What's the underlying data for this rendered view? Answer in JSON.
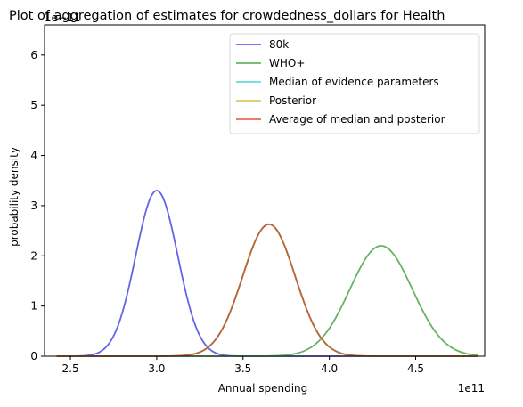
{
  "chart_data": {
    "type": "line",
    "title": "Plot of aggregation of estimates for crowdedness_dollars for Health",
    "xlabel": "Annual spending",
    "ylabel": "probability density",
    "x_offset_text": "1e11",
    "y_offset_text": "1e−11",
    "xlim": [
      2.35,
      4.9
    ],
    "ylim": [
      0,
      6.6
    ],
    "x_ticks": [
      2.5,
      3.0,
      3.5,
      4.0,
      4.5
    ],
    "x_tick_labels": [
      "2.5",
      "3.0",
      "3.5",
      "4.0",
      "4.5"
    ],
    "y_ticks": [
      0,
      1,
      2,
      3,
      4,
      5,
      6
    ],
    "y_tick_labels": [
      "0",
      "1",
      "2",
      "3",
      "4",
      "5",
      "6"
    ],
    "x_range": [
      2.42,
      4.86
    ],
    "legend_position": "upper right",
    "grid": false,
    "series": [
      {
        "name": "80k",
        "color": "#6464e6",
        "distribution": "normal",
        "mean": 3.0,
        "sd": 0.122,
        "peak": 3.3
      },
      {
        "name": "WHO+",
        "color": "#64b464",
        "distribution": "normal",
        "mean": 4.3,
        "sd": 0.181,
        "peak": 2.2
      },
      {
        "name": "Median of evidence parameters",
        "color": "#64dcdc",
        "distribution": "normal",
        "mean": 3.65,
        "sd": 0.152,
        "peak": 2.63
      },
      {
        "name": "Posterior",
        "color": "#dcc864",
        "distribution": "normal",
        "mean": 3.65,
        "sd": 0.152,
        "peak": 2.63
      },
      {
        "name": "Average of median and posterior",
        "color": "#f0645a",
        "distribution": "normal",
        "mean": 3.65,
        "sd": 0.152,
        "peak": 2.63
      }
    ],
    "overlap_color": "#b9653a"
  }
}
